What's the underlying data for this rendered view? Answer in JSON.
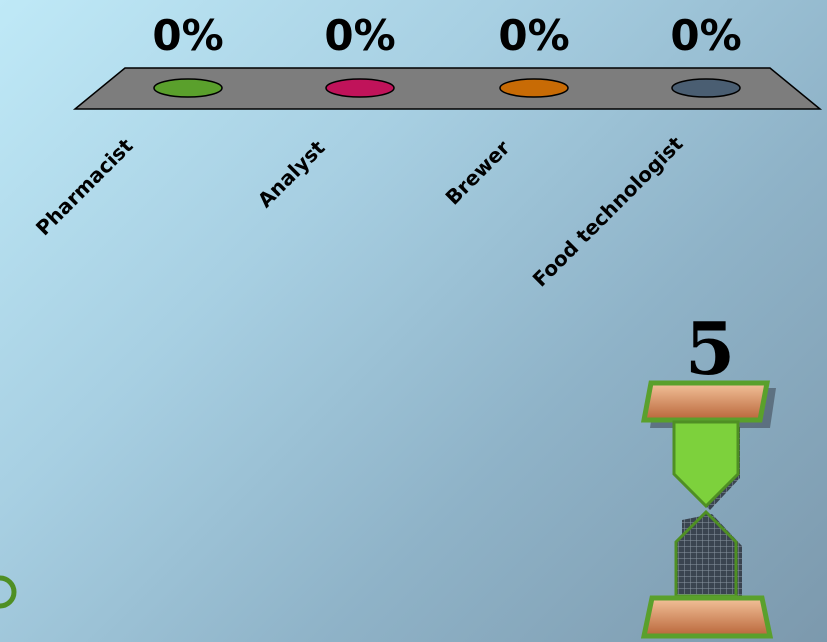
{
  "chart_data": {
    "type": "bar",
    "categories": [
      "Pharmacist",
      "Analyst",
      "Brewer",
      "Food technologist"
    ],
    "values": [
      0,
      0,
      0,
      0
    ],
    "value_labels": [
      "0%",
      "0%",
      "0%",
      "0%"
    ],
    "colors": [
      "#5aa02c",
      "#c0135a",
      "#c86b05",
      "#4a5e72"
    ],
    "ylim": [
      0,
      100
    ]
  },
  "timer": {
    "countdown": "5"
  }
}
